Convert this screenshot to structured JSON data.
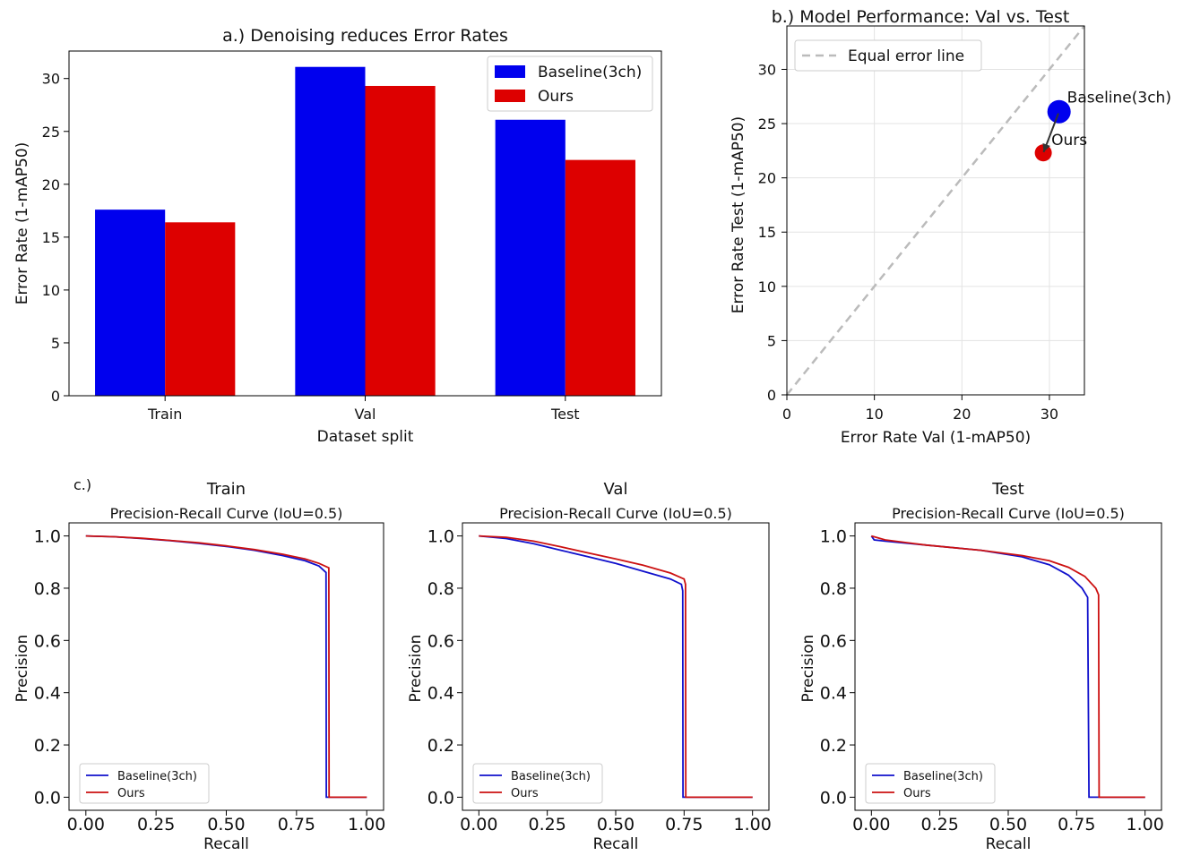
{
  "chart_data": [
    {
      "id": "a",
      "type": "bar",
      "title": "a.) Denoising reduces Error Rates",
      "xlabel": "Dataset split",
      "ylabel": "Error Rate (1-mAP50)",
      "categories": [
        "Train",
        "Val",
        "Test"
      ],
      "series": [
        {
          "name": "Baseline(3ch)",
          "color": "#0000ee",
          "values": [
            17.6,
            31.1,
            26.1
          ]
        },
        {
          "name": "Ours",
          "color": "#dd0000",
          "values": [
            16.4,
            29.3,
            22.3
          ]
        }
      ],
      "ylim": [
        0,
        32.6
      ],
      "yticks": [
        0,
        5,
        10,
        15,
        20,
        25,
        30
      ],
      "legend": "top-right",
      "grid": false
    },
    {
      "id": "b",
      "type": "scatter",
      "title": "b.) Model Performance: Val vs. Test",
      "xlabel": "Error Rate Val (1-mAP50)",
      "ylabel": "Error Rate Test (1-mAP50)",
      "xlim": [
        0,
        34
      ],
      "ylim": [
        0,
        34
      ],
      "xticks": [
        0,
        10,
        20,
        30
      ],
      "yticks": [
        0,
        5,
        10,
        15,
        20,
        25,
        30
      ],
      "reference_line": {
        "name": "Equal error line",
        "color": "#bbbbbb",
        "style": "dashed"
      },
      "points": [
        {
          "name": "Baseline(3ch)",
          "x": 31.1,
          "y": 26.1,
          "color": "#0000ee",
          "label": "Baseline(3ch)"
        },
        {
          "name": "Ours",
          "x": 29.3,
          "y": 22.3,
          "color": "#dd0000",
          "label": "Ours"
        }
      ],
      "arrow": {
        "from": "Baseline(3ch)",
        "to": "Ours"
      },
      "legend": "top-left",
      "grid": true
    },
    {
      "id": "c-train",
      "type": "line",
      "panel_label": "c.)",
      "title": "Train",
      "subtitle": "Precision-Recall Curve (IoU=0.5)",
      "xlabel": "Recall",
      "ylabel": "Precision",
      "xlim": [
        -0.06,
        1.06
      ],
      "ylim": [
        -0.05,
        1.05
      ],
      "xticks": [
        "0.00",
        "0.25",
        "0.50",
        "0.75",
        "1.00"
      ],
      "yticks": [
        "0.0",
        "0.2",
        "0.4",
        "0.6",
        "0.8",
        "1.0"
      ],
      "legend": "bottom-left",
      "series": [
        {
          "name": "Baseline(3ch)",
          "color": "#1010cc",
          "x": [
            0,
            0.1,
            0.2,
            0.3,
            0.4,
            0.5,
            0.6,
            0.7,
            0.78,
            0.83,
            0.855,
            0.856,
            0.87,
            1.0
          ],
          "y": [
            1.0,
            0.997,
            0.99,
            0.982,
            0.972,
            0.96,
            0.945,
            0.925,
            0.905,
            0.885,
            0.86,
            0.0,
            0.0,
            0.0
          ]
        },
        {
          "name": "Ours",
          "color": "#cc1111",
          "x": [
            0,
            0.1,
            0.2,
            0.3,
            0.4,
            0.5,
            0.6,
            0.7,
            0.78,
            0.83,
            0.865,
            0.866,
            0.87,
            1.0
          ],
          "y": [
            1.0,
            0.997,
            0.991,
            0.983,
            0.974,
            0.962,
            0.948,
            0.93,
            0.912,
            0.895,
            0.878,
            0.0,
            0.0,
            0.0
          ]
        }
      ]
    },
    {
      "id": "c-val",
      "type": "line",
      "title": "Val",
      "subtitle": "Precision-Recall Curve (IoU=0.5)",
      "xlabel": "Recall",
      "ylabel": "Precision",
      "xlim": [
        -0.06,
        1.06
      ],
      "ylim": [
        -0.05,
        1.05
      ],
      "xticks": [
        "0.00",
        "0.25",
        "0.50",
        "0.75",
        "1.00"
      ],
      "yticks": [
        "0.0",
        "0.2",
        "0.4",
        "0.6",
        "0.8",
        "1.0"
      ],
      "legend": "bottom-left",
      "series": [
        {
          "name": "Baseline(3ch)",
          "color": "#1010cc",
          "x": [
            0,
            0.1,
            0.2,
            0.3,
            0.4,
            0.5,
            0.6,
            0.7,
            0.74,
            0.745,
            0.746,
            0.76,
            1.0
          ],
          "y": [
            1.0,
            0.99,
            0.97,
            0.945,
            0.92,
            0.895,
            0.865,
            0.835,
            0.815,
            0.79,
            0.0,
            0.0,
            0.0
          ]
        },
        {
          "name": "Ours",
          "color": "#cc1111",
          "x": [
            0,
            0.1,
            0.2,
            0.3,
            0.4,
            0.5,
            0.6,
            0.7,
            0.75,
            0.755,
            0.756,
            0.76,
            1.0
          ],
          "y": [
            1.0,
            0.995,
            0.98,
            0.958,
            0.935,
            0.912,
            0.888,
            0.858,
            0.835,
            0.815,
            0.0,
            0.0,
            0.0
          ]
        }
      ]
    },
    {
      "id": "c-test",
      "type": "line",
      "title": "Test",
      "subtitle": "Precision-Recall Curve (IoU=0.5)",
      "xlabel": "Recall",
      "ylabel": "Precision",
      "xlim": [
        -0.06,
        1.06
      ],
      "ylim": [
        -0.05,
        1.05
      ],
      "xticks": [
        "0.00",
        "0.25",
        "0.50",
        "0.75",
        "1.00"
      ],
      "yticks": [
        "0.0",
        "0.2",
        "0.4",
        "0.6",
        "0.8",
        "1.0"
      ],
      "legend": "bottom-left",
      "series": [
        {
          "name": "Baseline(3ch)",
          "color": "#1010cc",
          "x": [
            0,
            0.01,
            0.05,
            0.2,
            0.4,
            0.55,
            0.65,
            0.72,
            0.77,
            0.79,
            0.795,
            0.83,
            1.0
          ],
          "y": [
            1.0,
            0.985,
            0.98,
            0.965,
            0.945,
            0.92,
            0.89,
            0.85,
            0.8,
            0.765,
            0.0,
            0.0,
            0.0
          ]
        },
        {
          "name": "Ours",
          "color": "#cc1111",
          "x": [
            0,
            0.05,
            0.2,
            0.4,
            0.55,
            0.65,
            0.72,
            0.78,
            0.82,
            0.83,
            0.832,
            1.0
          ],
          "y": [
            1.0,
            0.985,
            0.965,
            0.945,
            0.925,
            0.905,
            0.88,
            0.845,
            0.8,
            0.775,
            0.0,
            0.0
          ]
        }
      ]
    }
  ]
}
